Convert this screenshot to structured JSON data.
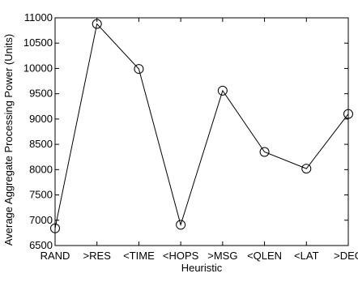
{
  "chart_data": {
    "type": "line",
    "title": "",
    "xlabel": "Heuristic",
    "ylabel": "Average Aggregate Processing Power (Units)",
    "categories": [
      "RAND",
      ">RES",
      "<TIME",
      "<HOPS",
      ">MSG",
      "<QLEN",
      "<LAT",
      ">DEG"
    ],
    "values": [
      6840,
      10880,
      9990,
      6910,
      9560,
      8350,
      8020,
      9100
    ],
    "ylim": [
      6500,
      11000
    ],
    "yticks": [
      6500,
      7000,
      7500,
      8000,
      8500,
      9000,
      9500,
      10000,
      10500,
      11000
    ],
    "grid": false,
    "legend": "none",
    "marker": "open-circle",
    "line_color": "#000000"
  }
}
